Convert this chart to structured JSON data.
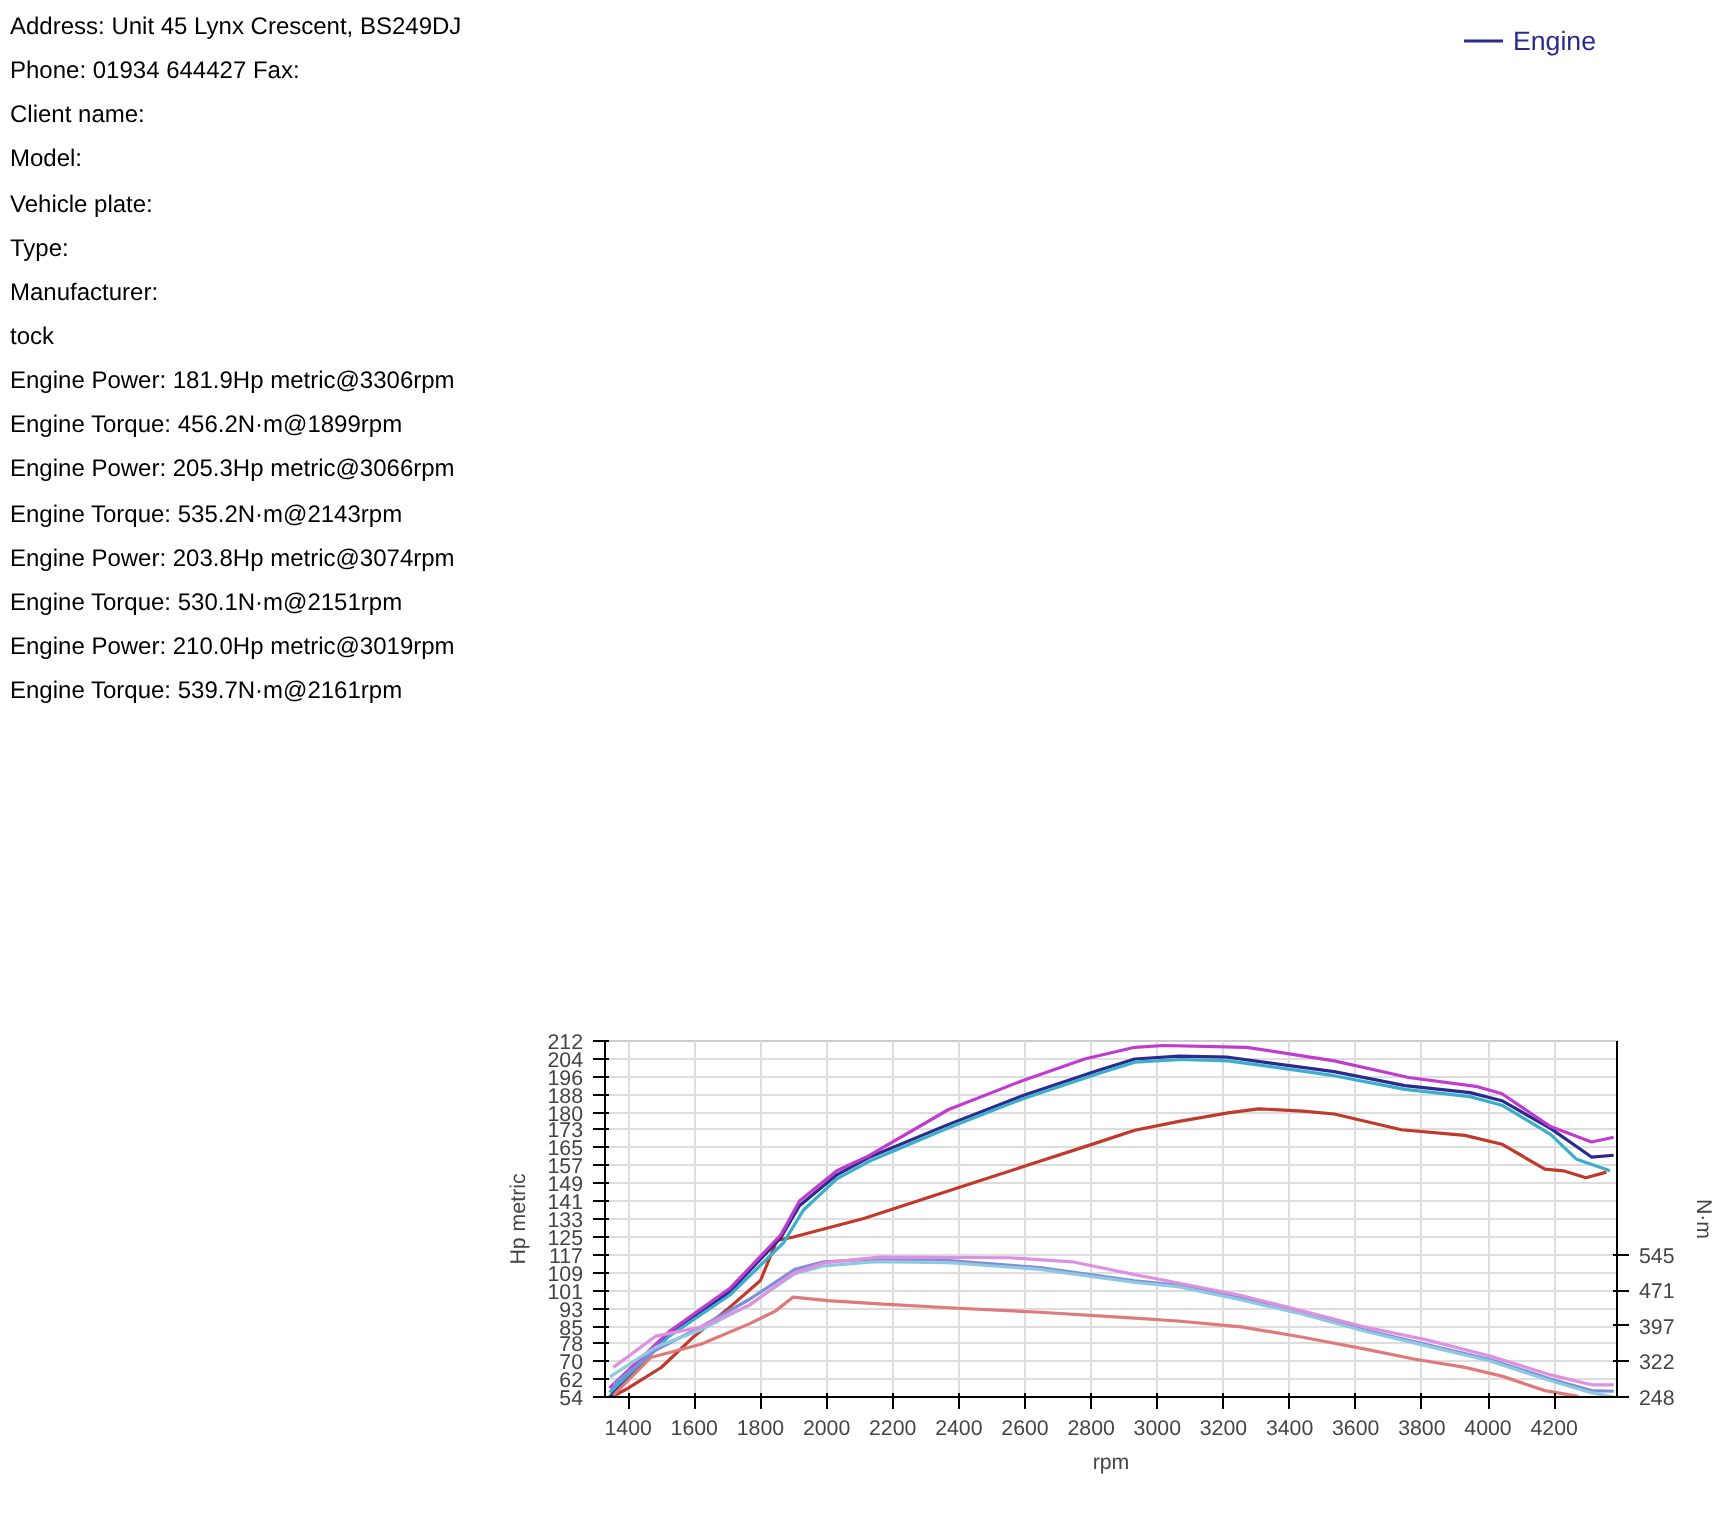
{
  "chart_data": {
    "type": "line",
    "annotations": [
      "Address: Unit 45 Lynx Crescent, BS249DJ",
      "Phone: 01934 644427 Fax:",
      "Client name:",
      "Model:",
      "Vehicle plate:",
      "Type:",
      "Manufacturer:",
      "tock",
      "Engine Power: 181.9Hp metric@3306rpm",
      "Engine Torque: 456.2N·m@1899rpm",
      "Engine Power: 205.3Hp metric@3066rpm",
      "Engine Torque: 535.2N·m@2143rpm",
      "Engine Power: 203.8Hp metric@3074rpm",
      "Engine Torque: 530.1N·m@2151rpm",
      "Engine Power: 210.0Hp metric@3019rpm",
      "Engine Torque: 539.7N·m@2161rpm"
    ],
    "xlabel": "rpm",
    "ylabel": "Hp metric",
    "y2label": "N·m",
    "xlim": [
      1330,
      4390
    ],
    "xticks": [
      1400,
      1600,
      1800,
      2000,
      2200,
      2400,
      2600,
      2800,
      3000,
      3200,
      3400,
      3600,
      3800,
      4000,
      4200
    ],
    "ylim": [
      54,
      212
    ],
    "yticks": [
      54,
      62,
      70,
      78,
      85,
      93,
      101,
      109,
      117,
      125,
      133,
      141,
      149,
      157,
      165,
      173,
      180,
      188,
      196,
      204,
      212
    ],
    "y2lim": [
      248,
      990
    ],
    "y2ticks": [
      248,
      322,
      397,
      471,
      545
    ],
    "grid": true,
    "legend": "top",
    "line_style": "solid",
    "marker": "none",
    "series": [
      {
        "color": "#c0392b",
        "x": [
          1350,
          1400,
          1500,
          1600,
          1700,
          1800,
          1850,
          1900,
          2115,
          2400,
          2600,
          2800,
          2932,
          3062,
          3214,
          3306,
          3440,
          3535,
          3738,
          3930,
          4042,
          4172,
          4228,
          4296,
          4358
        ],
        "values": [
          54,
          57.9,
          67.1,
          81.0,
          92.9,
          105.7,
          123.5,
          125.0,
          133.3,
          147,
          156.5,
          166,
          172.4,
          176.2,
          180.1,
          181.9,
          180.9,
          179.6,
          172.6,
          170.1,
          166.2,
          155.1,
          154.4,
          151.3,
          153.8
        ]
      },
      {
        "name": "Engine",
        "color": "#2b2b8f",
        "x": [
          1344,
          1524,
          1710,
          1862,
          1918,
          2031,
          2127,
          2369,
          2594,
          2820,
          2932,
          3066,
          3214,
          3343,
          3535,
          3749,
          3946,
          4042,
          4189,
          4313,
          4380
        ],
        "values": [
          54,
          81.8,
          101.1,
          124.8,
          138.9,
          152.6,
          160.3,
          175.0,
          187.8,
          198.9,
          204.0,
          205.3,
          204.8,
          202.2,
          198.4,
          192.2,
          189.1,
          185.5,
          173.2,
          160.5,
          161.3
        ]
      },
      {
        "color": "#3aaecb",
        "x": [
          1344,
          1524,
          1710,
          1870,
          1930,
          2031,
          2127,
          2369,
          2594,
          2820,
          2932,
          3074,
          3214,
          3343,
          3535,
          3749,
          3946,
          4042,
          4189,
          4268,
          4369
        ],
        "values": [
          56,
          81.0,
          99.5,
          122.5,
          137.0,
          150.8,
          158.5,
          173.5,
          186.4,
          197.5,
          202.6,
          203.8,
          203.2,
          200.6,
          196.6,
          190.5,
          187.3,
          183.5,
          170.6,
          159.5,
          154.4
        ]
      },
      {
        "color": "#c03cd0",
        "x": [
          1344,
          1524,
          1710,
          1862,
          1918,
          2031,
          2127,
          2369,
          2594,
          2780,
          2932,
          3019,
          3270,
          3535,
          3760,
          3963,
          4042,
          4189,
          4313,
          4380
        ],
        "values": [
          58,
          83.0,
          102.5,
          126.0,
          141.0,
          154.4,
          161.0,
          181.6,
          194.5,
          204.0,
          209.2,
          210.0,
          209.2,
          203.2,
          195.8,
          191.9,
          188.6,
          174.0,
          167.2,
          169.3
        ]
      },
      {
        "axis": "y2",
        "color": "#e07a7a",
        "x": [
          1355,
          1468,
          1620,
          1766,
          1845,
          1899,
          2003,
          2172,
          2397,
          2645,
          2932,
          3062,
          3254,
          3440,
          3625,
          3780,
          3930,
          4042,
          4172,
          4273
        ],
        "values": [
          251.6,
          330.2,
          358.0,
          400.4,
          427.0,
          456.2,
          448.7,
          441.5,
          433.0,
          424.6,
          412.5,
          406.4,
          394.3,
          372.6,
          348.4,
          326.6,
          309.7,
          291.5,
          261.3,
          249.2
        ]
      },
      {
        "axis": "y2",
        "color": "#7d8fd8",
        "x": [
          1355,
          1484,
          1620,
          1766,
          1904,
          1991,
          2143,
          2369,
          2645,
          2932,
          3062,
          3254,
          3440,
          3625,
          3817,
          4003,
          4189,
          4313,
          4380
        ],
        "values": [
          273.4,
          346.0,
          394.3,
          451.2,
          514.0,
          529.8,
          535.2,
          532.2,
          517.7,
          489.9,
          481.4,
          453.6,
          423.3,
          388.3,
          356.8,
          326.6,
          285.5,
          261.3,
          260.0
        ]
      },
      {
        "axis": "y2",
        "color": "#8fc8e0",
        "x": [
          1345,
          1484,
          1620,
          1766,
          1904,
          1991,
          2151,
          2369,
          2645,
          2932,
          3062,
          3254,
          3440,
          3625,
          3817,
          4003,
          4189,
          4313,
          4380
        ],
        "values": [
          290.0,
          352.0,
          388.0,
          440.0,
          505.0,
          521.0,
          530.1,
          528.0,
          514.0,
          487.0,
          478.0,
          450.5,
          420.5,
          385.5,
          354.0,
          323.5,
          282.0,
          257.0,
          248.0
        ]
      },
      {
        "axis": "y2",
        "color": "#e090e0",
        "x": [
          1355,
          1484,
          1620,
          1766,
          1899,
          1991,
          2161,
          2555,
          2743,
          2932,
          3006,
          3254,
          3440,
          3625,
          3817,
          4003,
          4189,
          4313,
          4380
        ],
        "values": [
          309.7,
          375.0,
          394.0,
          439.0,
          505.6,
          527.4,
          539.7,
          538.2,
          529.8,
          503.2,
          493.5,
          459.6,
          427.0,
          394.3,
          366.5,
          333.9,
          294.0,
          273.4,
          273.4
        ]
      }
    ]
  }
}
